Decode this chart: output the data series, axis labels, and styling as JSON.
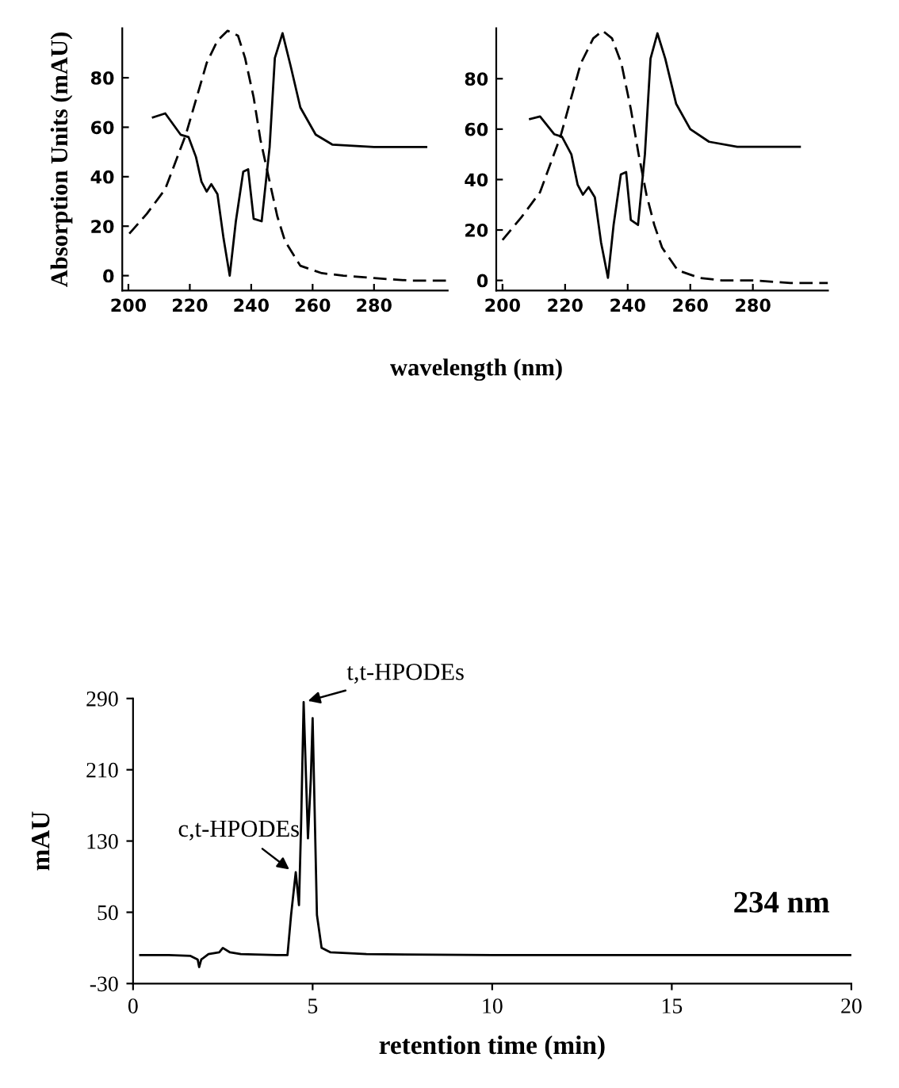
{
  "chart_data": [
    {
      "type": "line",
      "ylabel": "Absorption Units (mAU)",
      "xlabel": "wavelength (nm)",
      "xlim": [
        198,
        304
      ],
      "ylim": [
        -6,
        100
      ],
      "xticks": [
        200,
        220,
        240,
        260,
        280
      ],
      "yticks": [
        0,
        20,
        40,
        60,
        80
      ],
      "grid": false,
      "legend": false,
      "series": [
        {
          "color": "#000000",
          "line_style": "solid",
          "x": [
            208,
            212,
            217,
            219.6,
            222,
            223.8,
            225.5,
            227,
            229,
            231,
            233,
            235,
            237.4,
            239,
            240.8,
            243.4,
            246,
            247.7,
            250.2,
            252.8,
            256,
            261,
            266.4,
            280,
            297
          ],
          "values": [
            64,
            65.6,
            57,
            56,
            48,
            38,
            34,
            37,
            33,
            15,
            0,
            22,
            42,
            43,
            23,
            22,
            52,
            88,
            98,
            85,
            68,
            57,
            53,
            52,
            52
          ]
        },
        {
          "color": "#000000",
          "line_style": "dashed",
          "x": [
            200.3,
            206,
            212,
            218.7,
            225.5,
            229,
            232.3,
            235.7,
            238,
            240.8,
            243,
            246,
            248.5,
            251,
            256,
            263,
            270,
            280,
            292,
            304
          ],
          "values": [
            17,
            25,
            35,
            57,
            86,
            95,
            99,
            97,
            88,
            72,
            55,
            38,
            24,
            14,
            4,
            1,
            0,
            -1,
            -2,
            -2
          ]
        }
      ]
    },
    {
      "type": "line",
      "xlim": [
        198,
        304
      ],
      "ylim": [
        -4,
        100
      ],
      "xticks": [
        200,
        220,
        240,
        260,
        280
      ],
      "yticks": [
        0,
        20,
        40,
        60,
        80
      ],
      "grid": false,
      "legend": false,
      "series": [
        {
          "color": "#000000",
          "line_style": "solid",
          "x": [
            208.8,
            212,
            216.5,
            219,
            222,
            224,
            225.7,
            227.5,
            229.5,
            231.5,
            233.7,
            235.5,
            237.8,
            239.5,
            241,
            243.3,
            245.5,
            247.3,
            249.5,
            252,
            255.5,
            260,
            266,
            275,
            295
          ],
          "values": [
            64,
            65,
            58,
            57,
            50,
            38,
            34,
            37,
            33,
            15,
            1,
            22,
            42,
            43,
            24,
            22,
            50,
            88,
            98,
            88,
            70,
            60,
            55,
            53,
            53
          ]
        },
        {
          "color": "#000000",
          "line_style": "dashed",
          "x": [
            200,
            206,
            212,
            218.5,
            225,
            229,
            232,
            235,
            238,
            241,
            243.5,
            246,
            248.5,
            251,
            256,
            263,
            270,
            280,
            292,
            304
          ],
          "values": [
            16,
            25,
            35,
            57,
            86,
            96,
            99,
            96,
            86,
            68,
            50,
            34,
            22,
            13,
            4,
            1,
            0,
            0,
            -1,
            -1
          ]
        }
      ]
    },
    {
      "type": "line",
      "xlabel": "retention time (min)",
      "ylabel": "mAU",
      "xlim": [
        0,
        20
      ],
      "ylim": [
        -30,
        290
      ],
      "xticks": [
        0,
        5,
        10,
        15,
        20
      ],
      "yticks": [
        -30,
        50,
        130,
        210,
        290
      ],
      "grid": false,
      "legend": false,
      "annotations": [
        {
          "text": "t,t-HPODEs",
          "x": 4.75,
          "y": 286
        },
        {
          "text": "c,t-HPODEs",
          "x": 4.45,
          "y": 95
        },
        "234 nm"
      ],
      "series": [
        {
          "color": "#000000",
          "line_style": "solid",
          "x": [
            0.2,
            1.0,
            1.6,
            1.8,
            1.84,
            1.9,
            2.1,
            2.4,
            2.5,
            2.7,
            3.0,
            4.0,
            4.3,
            4.4,
            4.53,
            4.62,
            4.68,
            4.75,
            4.87,
            4.95,
            5.0,
            5.12,
            5.25,
            5.5,
            6.5,
            10,
            15,
            20
          ],
          "values": [
            2,
            2,
            1,
            -3,
            -11.5,
            -3,
            3,
            5,
            10,
            5,
            3,
            2,
            2,
            47,
            95,
            58,
            150,
            286,
            133,
            200,
            268,
            47,
            10,
            5,
            3,
            2,
            2,
            2
          ]
        }
      ]
    }
  ]
}
